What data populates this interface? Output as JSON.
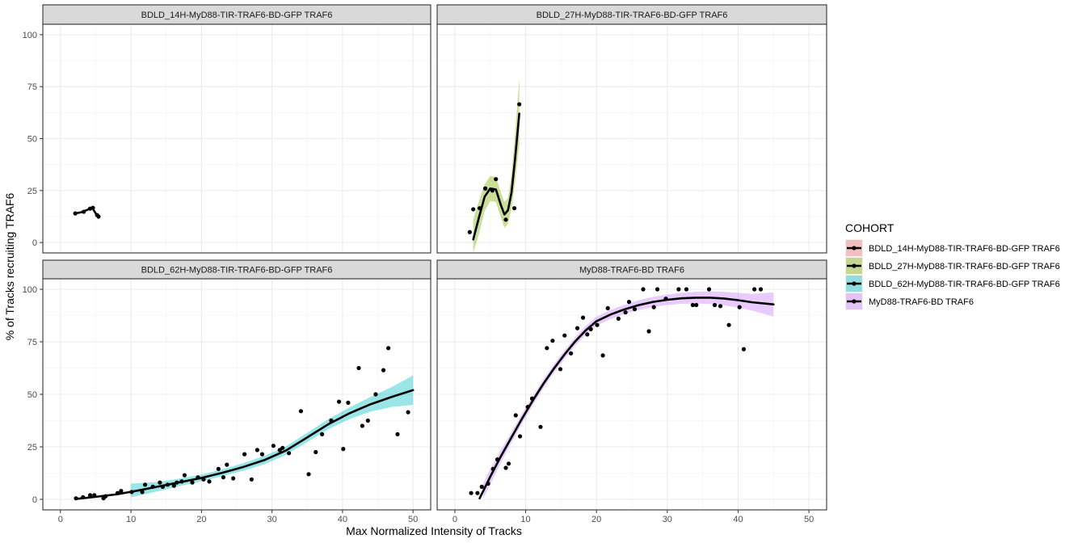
{
  "chart_data": {
    "type": "scatter",
    "facet_wrap": true,
    "xlabel": "Max Normalized Intensity of Tracks",
    "ylabel": "% of Tracks recruiting TRAF6",
    "xlim": [
      -2.5,
      52.5
    ],
    "ylim": [
      -5,
      105
    ],
    "x_ticks": [
      0,
      10,
      20,
      30,
      40,
      50
    ],
    "y_ticks": [
      0,
      25,
      50,
      75,
      100
    ],
    "grid": true,
    "legend": {
      "title": "COHORT",
      "placement": "right",
      "entries": [
        {
          "name": "BDLD_14H-MyD88-TIR-TRAF6-BD-GFP TRAF6",
          "color": "#F8766D"
        },
        {
          "name": "BDLD_27H-MyD88-TIR-TRAF6-BD-GFP TRAF6",
          "color": "#7CAE00"
        },
        {
          "name": "BDLD_62H-MyD88-TIR-TRAF6-BD-GFP TRAF6",
          "color": "#00BFC4"
        },
        {
          "name": "MyD88-TRAF6-BD TRAF6",
          "color": "#C77CFF"
        }
      ]
    },
    "panels": [
      {
        "strip": "BDLD_14H-MyD88-TIR-TRAF6-BD-GFP TRAF6",
        "color": "#F8766D",
        "points": [
          [
            2.1,
            14
          ],
          [
            3.3,
            14.8
          ],
          [
            4.2,
            16.3
          ],
          [
            4.6,
            16.7
          ],
          [
            5.2,
            13.2
          ],
          [
            5.4,
            12.5
          ]
        ],
        "smooth": [
          [
            2.1,
            14
          ],
          [
            3.0,
            14.6
          ],
          [
            3.8,
            15.7
          ],
          [
            4.5,
            16.8
          ],
          [
            5.0,
            14.0
          ],
          [
            5.4,
            12.5
          ]
        ],
        "band": null
      },
      {
        "strip": "BDLD_27H-MyD88-TIR-TRAF6-BD-GFP TRAF6",
        "color": "#7CAE00",
        "points": [
          [
            2.1,
            5
          ],
          [
            2.6,
            16
          ],
          [
            3.5,
            16.5
          ],
          [
            4.3,
            26
          ],
          [
            5.3,
            25
          ],
          [
            5.8,
            30.5
          ],
          [
            7.2,
            11
          ],
          [
            8.4,
            16.5
          ],
          [
            9.1,
            66.5
          ]
        ],
        "smooth": [
          [
            2.6,
            1.5
          ],
          [
            3.4,
            12
          ],
          [
            4.2,
            22
          ],
          [
            5.0,
            26
          ],
          [
            5.8,
            25.5
          ],
          [
            6.5,
            18
          ],
          [
            7.0,
            13.5
          ],
          [
            7.5,
            15.5
          ],
          [
            8.0,
            24
          ],
          [
            8.5,
            40
          ],
          [
            9.1,
            62
          ]
        ],
        "band": [
          [
            2.6,
            1.5,
            11,
            -5
          ],
          [
            3.4,
            12,
            20,
            4
          ],
          [
            4.2,
            22,
            28,
            15
          ],
          [
            5.0,
            26,
            32,
            20
          ],
          [
            5.8,
            25.5,
            31.5,
            19.5
          ],
          [
            6.5,
            18,
            24,
            12
          ],
          [
            7.0,
            13.5,
            19.5,
            7
          ],
          [
            7.5,
            15.5,
            21.5,
            9
          ],
          [
            8.0,
            24,
            33,
            16
          ],
          [
            8.5,
            40,
            52,
            29
          ],
          [
            9.1,
            62,
            79,
            47
          ]
        ]
      },
      {
        "strip": "BDLD_62H-MyD88-TIR-TRAF6-BD-GFP TRAF6",
        "color": "#00BFC4",
        "points": [
          [
            2.2,
            0.5
          ],
          [
            3.2,
            1
          ],
          [
            4.2,
            2
          ],
          [
            4.8,
            2
          ],
          [
            6.1,
            0.5
          ],
          [
            6.4,
            1.5
          ],
          [
            8.1,
            3
          ],
          [
            8.6,
            4
          ],
          [
            10.1,
            3.5
          ],
          [
            11.6,
            3.5
          ],
          [
            12,
            7
          ],
          [
            13.1,
            6
          ],
          [
            14.1,
            8
          ],
          [
            14.5,
            6
          ],
          [
            15.2,
            7
          ],
          [
            16.1,
            6.5
          ],
          [
            16.5,
            8
          ],
          [
            17.2,
            8.5
          ],
          [
            17.6,
            11.5
          ],
          [
            18.7,
            8
          ],
          [
            19.5,
            10.5
          ],
          [
            20.3,
            9.5
          ],
          [
            21.1,
            8.5
          ],
          [
            22.4,
            14.5
          ],
          [
            23.1,
            10.5
          ],
          [
            23.6,
            16.5
          ],
          [
            24.5,
            10
          ],
          [
            26.1,
            21.5
          ],
          [
            27.1,
            9.5
          ],
          [
            27.9,
            23.5
          ],
          [
            28.6,
            21.5
          ],
          [
            30.2,
            25.5
          ],
          [
            31.1,
            23.5
          ],
          [
            31.5,
            24.5
          ],
          [
            32.4,
            22
          ],
          [
            34.1,
            42
          ],
          [
            35.2,
            12
          ],
          [
            36.2,
            22.5
          ],
          [
            37.1,
            31
          ],
          [
            38.4,
            37.5
          ],
          [
            39.5,
            46.5
          ],
          [
            40.1,
            24
          ],
          [
            40.8,
            46
          ],
          [
            42.3,
            62.5
          ],
          [
            42.8,
            35
          ],
          [
            43.6,
            37.5
          ],
          [
            44.7,
            50
          ],
          [
            45.8,
            61.5
          ],
          [
            46.5,
            72
          ],
          [
            47.8,
            31
          ],
          [
            49.3,
            41.5
          ]
        ],
        "smooth": [
          [
            2.2,
            0.2
          ],
          [
            5,
            1.2
          ],
          [
            8,
            2.4
          ],
          [
            11,
            4.2
          ],
          [
            14,
            6.2
          ],
          [
            17,
            8.2
          ],
          [
            20,
            10.2
          ],
          [
            23,
            12.7
          ],
          [
            26,
            15.5
          ],
          [
            29,
            18.8
          ],
          [
            32,
            23.3
          ],
          [
            35,
            29.5
          ],
          [
            38,
            35.8
          ],
          [
            41,
            41
          ],
          [
            44,
            45.3
          ],
          [
            47,
            48.8
          ],
          [
            50,
            52
          ]
        ],
        "band": [
          [
            10,
            4.5,
            7.5,
            1.0
          ],
          [
            14,
            6.2,
            8.3,
            4.0
          ],
          [
            17,
            8.2,
            10.0,
            6.4
          ],
          [
            20,
            10.2,
            11.8,
            8.6
          ],
          [
            23,
            12.7,
            14.3,
            11.1
          ],
          [
            26,
            15.5,
            17.3,
            13.7
          ],
          [
            29,
            18.8,
            20.8,
            16.8
          ],
          [
            32,
            23.3,
            25.3,
            21.3
          ],
          [
            35,
            29.5,
            31.7,
            27.3
          ],
          [
            38,
            35.8,
            38.2,
            33.4
          ],
          [
            41,
            41,
            43.8,
            38.2
          ],
          [
            44,
            45.3,
            48.8,
            41.8
          ],
          [
            47,
            48.8,
            53.5,
            44.0
          ],
          [
            50,
            52,
            59,
            45
          ]
        ]
      },
      {
        "strip": "MyD88-TRAF6-BD TRAF6",
        "color": "#C77CFF",
        "points": [
          [
            2.3,
            3
          ],
          [
            3.2,
            3
          ],
          [
            3.8,
            6
          ],
          [
            4.7,
            7.5
          ],
          [
            5.4,
            14.5
          ],
          [
            6,
            19
          ],
          [
            7.2,
            15
          ],
          [
            7.6,
            17
          ],
          [
            8.6,
            40
          ],
          [
            9.2,
            30
          ],
          [
            10.3,
            44
          ],
          [
            10.9,
            48
          ],
          [
            12.1,
            34.5
          ],
          [
            13,
            72
          ],
          [
            13.8,
            75.5
          ],
          [
            14.9,
            62
          ],
          [
            15.5,
            78
          ],
          [
            16.4,
            69.5
          ],
          [
            17.3,
            81.5
          ],
          [
            18.1,
            86.5
          ],
          [
            18.7,
            78.5
          ],
          [
            19.2,
            81
          ],
          [
            20.1,
            83
          ],
          [
            20.9,
            68.5
          ],
          [
            21.6,
            91
          ],
          [
            23.1,
            86
          ],
          [
            24.1,
            89
          ],
          [
            24.6,
            94
          ],
          [
            25.4,
            90.5
          ],
          [
            26.6,
            100
          ],
          [
            27.4,
            80
          ],
          [
            28.1,
            91.5
          ],
          [
            28.6,
            100
          ],
          [
            29.8,
            95.5
          ],
          [
            31.6,
            100
          ],
          [
            32.7,
            100
          ],
          [
            33.6,
            92.5
          ],
          [
            34.1,
            92.5
          ],
          [
            35.9,
            100
          ],
          [
            36.7,
            92.5
          ],
          [
            37.5,
            92
          ],
          [
            38.7,
            83
          ],
          [
            40.2,
            91.5
          ],
          [
            40.8,
            71.5
          ],
          [
            42.3,
            100
          ],
          [
            43.2,
            100
          ]
        ],
        "smooth": [
          [
            3.5,
            0.5
          ],
          [
            5,
            10.8
          ],
          [
            6.5,
            20.5
          ],
          [
            8,
            29.5
          ],
          [
            9.5,
            38.5
          ],
          [
            11,
            47
          ],
          [
            12.5,
            55
          ],
          [
            14,
            62.3
          ],
          [
            15.5,
            69
          ],
          [
            17,
            75.2
          ],
          [
            18.5,
            80.5
          ],
          [
            20,
            84.8
          ],
          [
            22,
            88
          ],
          [
            24,
            90.5
          ],
          [
            26,
            92.5
          ],
          [
            28,
            94
          ],
          [
            30,
            95
          ],
          [
            32,
            95.7
          ],
          [
            34,
            96
          ],
          [
            36,
            96
          ],
          [
            38,
            95.6
          ],
          [
            40,
            94.8
          ],
          [
            42,
            93.8
          ],
          [
            45,
            92.8
          ]
        ],
        "band": [
          [
            4,
            4.5,
            7.5,
            0.5
          ],
          [
            5,
            10.8,
            14.5,
            7.0
          ],
          [
            6.5,
            20.5,
            23.5,
            17.5
          ],
          [
            8,
            29.5,
            32.0,
            27.0
          ],
          [
            9.5,
            38.5,
            40.8,
            36.2
          ],
          [
            11,
            47,
            49.2,
            44.8
          ],
          [
            12.5,
            55,
            57.1,
            52.9
          ],
          [
            14,
            62.3,
            64.3,
            60.3
          ],
          [
            15.5,
            69,
            71.0,
            67.0
          ],
          [
            17,
            75.2,
            77.2,
            73.2
          ],
          [
            18.5,
            80.5,
            82.6,
            78.4
          ],
          [
            20,
            84.8,
            86.9,
            82.7
          ],
          [
            22,
            88,
            90.2,
            85.8
          ],
          [
            24,
            90.5,
            92.7,
            88.3
          ],
          [
            26,
            92.5,
            94.8,
            90.2
          ],
          [
            28,
            94,
            96.4,
            91.6
          ],
          [
            30,
            95,
            97.5,
            92.5
          ],
          [
            32,
            95.7,
            98.3,
            93.1
          ],
          [
            34,
            96,
            98.8,
            93.2
          ],
          [
            36,
            96,
            99.0,
            93.0
          ],
          [
            38,
            95.6,
            98.8,
            92.4
          ],
          [
            40,
            94.8,
            98.3,
            91.3
          ],
          [
            42,
            93.8,
            97.8,
            89.8
          ],
          [
            45,
            92.8,
            98.5,
            87.0
          ]
        ]
      }
    ]
  }
}
